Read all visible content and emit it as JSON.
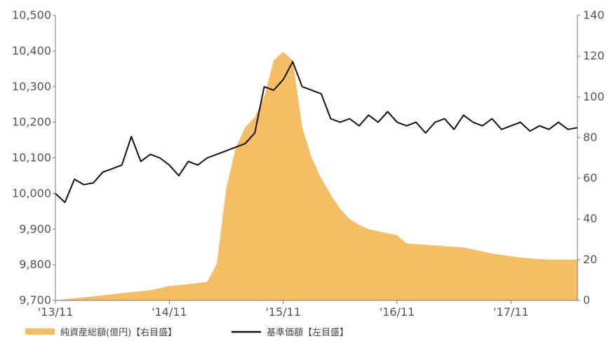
{
  "chart_data": {
    "type": "line",
    "x_ticks": [
      "'13/11",
      "'14/11",
      "'15/11",
      "'16/11",
      "'17/11"
    ],
    "y_left": {
      "ticks": [
        "9,700",
        "9,800",
        "9,900",
        "10,000",
        "10,100",
        "10,200",
        "10,300",
        "10,400",
        "10,500"
      ],
      "min": 9700,
      "max": 10500
    },
    "y_right": {
      "ticks": [
        "0",
        "20",
        "40",
        "60",
        "80",
        "100",
        "120",
        "140"
      ],
      "min": 0,
      "max": 140
    },
    "x_range": [
      "2013-11",
      "2018-06"
    ],
    "grid": false,
    "legend_position": "bottom-left",
    "series": [
      {
        "name": "純資産総額(億円)【右目盛】",
        "type": "area",
        "axis": "right",
        "color": "#F5BE62",
        "x": [
          "2013-11",
          "2014-01",
          "2014-03",
          "2014-05",
          "2014-07",
          "2014-09",
          "2014-11",
          "2015-01",
          "2015-03",
          "2015-04",
          "2015-05",
          "2015-06",
          "2015-07",
          "2015-08",
          "2015-09",
          "2015-10",
          "2015-11",
          "2015-12",
          "2016-01",
          "2016-02",
          "2016-03",
          "2016-04",
          "2016-05",
          "2016-06",
          "2016-07",
          "2016-08",
          "2016-09",
          "2016-10",
          "2016-11",
          "2016-12",
          "2017-03",
          "2017-06",
          "2017-09",
          "2017-12",
          "2018-03",
          "2018-06"
        ],
        "values": [
          0,
          1,
          2,
          3,
          4,
          5,
          7,
          8,
          9,
          18,
          55,
          75,
          85,
          90,
          100,
          118,
          122,
          118,
          85,
          70,
          60,
          52,
          45,
          40,
          37,
          35,
          34,
          33,
          32,
          28,
          27,
          26,
          23,
          21,
          20,
          20
        ]
      },
      {
        "name": "基準価額【左目盛】",
        "type": "line",
        "axis": "left",
        "color": "#111111",
        "x": [
          "2013-11",
          "2013-12",
          "2014-01",
          "2014-02",
          "2014-03",
          "2014-04",
          "2014-05",
          "2014-06",
          "2014-07",
          "2014-08",
          "2014-09",
          "2014-10",
          "2014-11",
          "2014-12",
          "2015-01",
          "2015-02",
          "2015-03",
          "2015-04",
          "2015-05",
          "2015-06",
          "2015-07",
          "2015-08",
          "2015-09",
          "2015-10",
          "2015-11",
          "2015-12",
          "2016-01",
          "2016-02",
          "2016-03",
          "2016-04",
          "2016-05",
          "2016-06",
          "2016-07",
          "2016-08",
          "2016-09",
          "2016-10",
          "2016-11",
          "2016-12",
          "2017-01",
          "2017-02",
          "2017-03",
          "2017-04",
          "2017-05",
          "2017-06",
          "2017-07",
          "2017-08",
          "2017-09",
          "2017-10",
          "2017-11",
          "2017-12",
          "2018-01",
          "2018-02",
          "2018-03",
          "2018-04",
          "2018-05",
          "2018-06"
        ],
        "values": [
          10000,
          9975,
          10040,
          10025,
          10030,
          10060,
          10070,
          10080,
          10160,
          10090,
          10110,
          10100,
          10080,
          10050,
          10090,
          10080,
          10100,
          10110,
          10120,
          10130,
          10140,
          10170,
          10300,
          10290,
          10320,
          10370,
          10300,
          10290,
          10280,
          10210,
          10200,
          10210,
          10190,
          10220,
          10200,
          10230,
          10200,
          10190,
          10200,
          10170,
          10200,
          10210,
          10180,
          10220,
          10200,
          10190,
          10210,
          10180,
          10190,
          10200,
          10175,
          10190,
          10180,
          10200,
          10180,
          10185
        ]
      }
    ]
  }
}
